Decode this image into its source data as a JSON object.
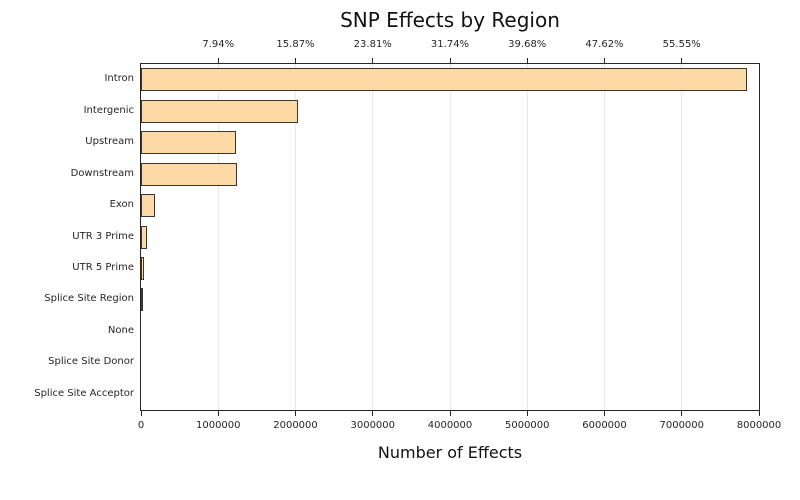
{
  "chart_data": {
    "type": "bar",
    "orientation": "horizontal",
    "title": "SNP Effects by Region",
    "xlabel": "Number of Effects",
    "ylabel": "",
    "categories": [
      "Intron",
      "Intergenic",
      "Upstream",
      "Downstream",
      "Exon",
      "UTR 3 Prime",
      "UTR 5 Prime",
      "Splice Site Region",
      "None",
      "Splice Site Donor",
      "Splice Site Acceptor"
    ],
    "values": [
      7850000,
      2030000,
      1230000,
      1240000,
      180000,
      75000,
      42000,
      30000,
      0,
      0,
      0
    ],
    "xlim": [
      0,
      8000000
    ],
    "x_ticks": [
      0,
      1000000,
      2000000,
      3000000,
      4000000,
      5000000,
      6000000,
      7000000,
      8000000
    ],
    "x_tick_labels": [
      "0",
      "1000000",
      "2000000",
      "3000000",
      "4000000",
      "5000000",
      "6000000",
      "7000000",
      "8000000"
    ],
    "top_axis": {
      "tick_positions": [
        1000000,
        2000000,
        3000000,
        4000000,
        5000000,
        6000000,
        7000000
      ],
      "tick_labels": [
        "7.94%",
        "15.87%",
        "23.81%",
        "31.74%",
        "39.68%",
        "47.62%",
        "55.55%"
      ]
    },
    "grid": true,
    "legend_position": "none",
    "colors": {
      "bar_fill": "#FCD9A5",
      "bar_edge": "#3A3530",
      "grid_line": "#E6E6E6",
      "axis": "#262626",
      "tick_text": "#262626",
      "title_text": "#111111",
      "background": "#FFFFFF"
    }
  }
}
